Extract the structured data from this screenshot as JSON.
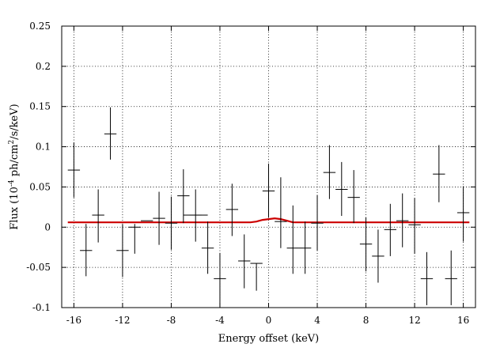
{
  "chart_data": {
    "type": "scatter",
    "title": "",
    "xlabel": "Energy offset (keV)",
    "ylabel_parts": {
      "pre": "Flux (10",
      "exp1": "-4",
      "mid": " ph/cm",
      "exp2": "2",
      "post": "/s/keV)"
    },
    "xlim": [
      -17,
      17
    ],
    "ylim": [
      -0.1,
      0.25
    ],
    "x_ticks": [
      -16,
      -12,
      -8,
      -4,
      0,
      4,
      8,
      12,
      16
    ],
    "x_tick_labels": [
      "-16",
      "-12",
      "-8",
      "-4",
      "0",
      "4",
      "8",
      "12",
      "16"
    ],
    "y_ticks": [
      -0.1,
      -0.05,
      0,
      0.05,
      0.1,
      0.15,
      0.2,
      0.25
    ],
    "y_tick_labels": [
      "-0.1",
      "-0.05",
      "0",
      "0.05",
      "0.1",
      "0.15",
      "0.2",
      "0.25"
    ],
    "grid": true,
    "grid_style": "dotted",
    "colors": {
      "data": "#000000",
      "model": "#cc0000",
      "grid": "#000000"
    },
    "series": [
      {
        "kind": "errorbars",
        "x_halfwidth": 0.5,
        "points": [
          {
            "x": -16.0,
            "y": 0.071,
            "ylo": 0.037,
            "yhi": 0.105
          },
          {
            "x": -15.0,
            "y": -0.029,
            "ylo": -0.061,
            "yhi": 0.004
          },
          {
            "x": -14.0,
            "y": 0.015,
            "ylo": -0.019,
            "yhi": 0.047
          },
          {
            "x": -13.0,
            "y": 0.116,
            "ylo": 0.084,
            "yhi": 0.149
          },
          {
            "x": -12.0,
            "y": -0.029,
            "ylo": -0.062,
            "yhi": 0.004
          },
          {
            "x": -11.0,
            "y": 0.0,
            "ylo": -0.033,
            "yhi": 0.004
          },
          {
            "x": -10.0,
            "y": 0.008,
            "ylo": 0.008,
            "yhi": 0.008
          },
          {
            "x": -9.0,
            "y": 0.011,
            "ylo": -0.022,
            "yhi": 0.044
          },
          {
            "x": -8.0,
            "y": 0.005,
            "ylo": -0.028,
            "yhi": 0.038
          },
          {
            "x": -7.0,
            "y": 0.039,
            "ylo": 0.005,
            "yhi": 0.072
          },
          {
            "x": -6.5,
            "y": 0.015,
            "ylo": 0.015,
            "yhi": 0.015
          },
          {
            "x": -6.0,
            "y": 0.015,
            "ylo": -0.018,
            "yhi": 0.047
          },
          {
            "x": -5.5,
            "y": 0.015,
            "ylo": 0.015,
            "yhi": 0.015
          },
          {
            "x": -5.0,
            "y": -0.026,
            "ylo": -0.058,
            "yhi": 0.007
          },
          {
            "x": -4.0,
            "y": -0.064,
            "ylo": -0.098,
            "yhi": -0.032
          },
          {
            "x": -3.0,
            "y": 0.022,
            "ylo": -0.011,
            "yhi": 0.054
          },
          {
            "x": -2.0,
            "y": -0.042,
            "ylo": -0.076,
            "yhi": -0.009
          },
          {
            "x": -1.0,
            "y": -0.045,
            "ylo": -0.079,
            "yhi": -0.045
          },
          {
            "x": 0.0,
            "y": 0.045,
            "ylo": 0.012,
            "yhi": 0.079
          },
          {
            "x": 1.0,
            "y": 0.007,
            "ylo": -0.026,
            "yhi": 0.062
          },
          {
            "x": 2.0,
            "y": -0.026,
            "ylo": -0.058,
            "yhi": 0.027
          },
          {
            "x": 3.0,
            "y": -0.026,
            "ylo": -0.058,
            "yhi": 0.007
          },
          {
            "x": 4.0,
            "y": 0.005,
            "ylo": -0.029,
            "yhi": 0.04
          },
          {
            "x": 5.0,
            "y": 0.068,
            "ylo": 0.035,
            "yhi": 0.102
          },
          {
            "x": 6.0,
            "y": 0.047,
            "ylo": 0.014,
            "yhi": 0.081
          },
          {
            "x": 7.0,
            "y": 0.037,
            "ylo": 0.005,
            "yhi": 0.071
          },
          {
            "x": 8.0,
            "y": -0.021,
            "ylo": -0.055,
            "yhi": 0.012
          },
          {
            "x": 9.0,
            "y": -0.036,
            "ylo": -0.069,
            "yhi": -0.003
          },
          {
            "x": 10.0,
            "y": -0.003,
            "ylo": -0.036,
            "yhi": 0.029
          },
          {
            "x": 11.0,
            "y": 0.008,
            "ylo": -0.025,
            "yhi": 0.042
          },
          {
            "x": 12.0,
            "y": 0.003,
            "ylo": -0.033,
            "yhi": 0.036
          },
          {
            "x": 13.0,
            "y": -0.064,
            "ylo": -0.097,
            "yhi": -0.031
          },
          {
            "x": 14.0,
            "y": 0.066,
            "ylo": 0.031,
            "yhi": 0.102
          },
          {
            "x": 15.0,
            "y": -0.064,
            "ylo": -0.097,
            "yhi": -0.029
          },
          {
            "x": 16.0,
            "y": 0.018,
            "ylo": -0.018,
            "yhi": 0.051
          }
        ]
      },
      {
        "kind": "model",
        "x": [
          -16.5,
          -1.5,
          -1.0,
          -0.5,
          0.0,
          0.5,
          1.0,
          1.5,
          2.0,
          16.5
        ],
        "y": [
          0.006,
          0.006,
          0.007,
          0.009,
          0.01,
          0.011,
          0.01,
          0.008,
          0.006,
          0.006
        ]
      }
    ]
  }
}
